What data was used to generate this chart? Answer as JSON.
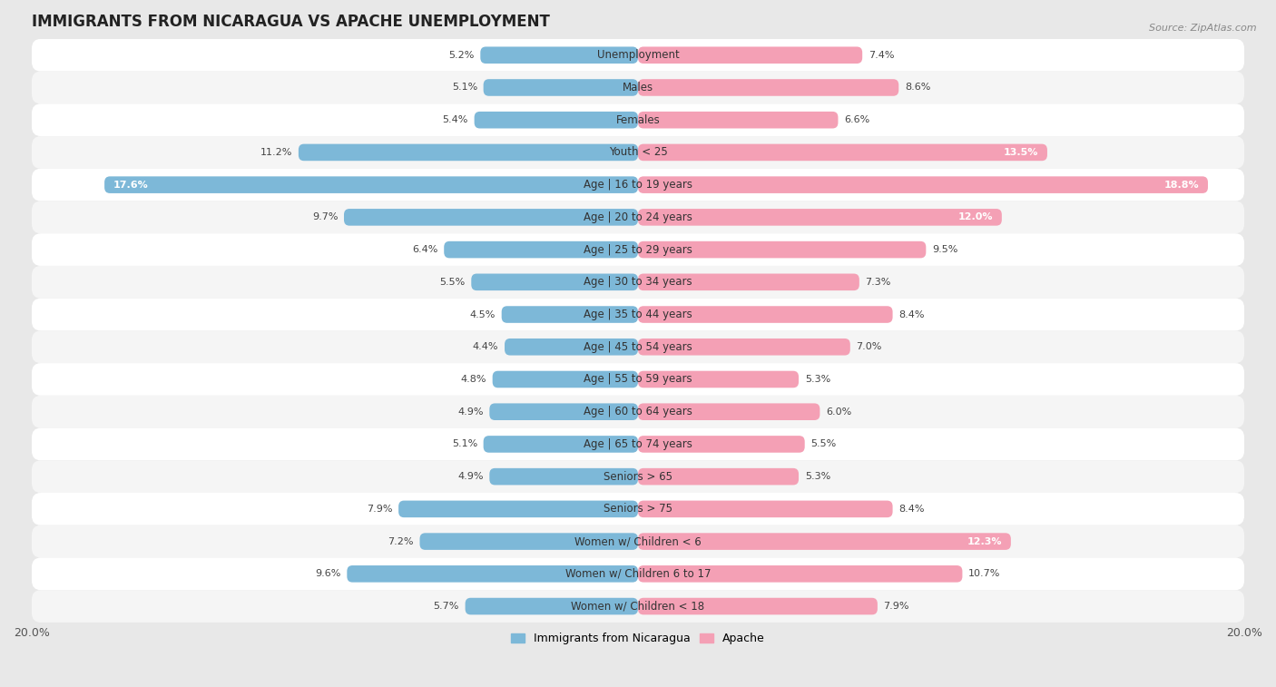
{
  "title": "IMMIGRANTS FROM NICARAGUA VS APACHE UNEMPLOYMENT",
  "source": "Source: ZipAtlas.com",
  "categories": [
    "Unemployment",
    "Males",
    "Females",
    "Youth < 25",
    "Age | 16 to 19 years",
    "Age | 20 to 24 years",
    "Age | 25 to 29 years",
    "Age | 30 to 34 years",
    "Age | 35 to 44 years",
    "Age | 45 to 54 years",
    "Age | 55 to 59 years",
    "Age | 60 to 64 years",
    "Age | 65 to 74 years",
    "Seniors > 65",
    "Seniors > 75",
    "Women w/ Children < 6",
    "Women w/ Children 6 to 17",
    "Women w/ Children < 18"
  ],
  "nicaragua_values": [
    5.2,
    5.1,
    5.4,
    11.2,
    17.6,
    9.7,
    6.4,
    5.5,
    4.5,
    4.4,
    4.8,
    4.9,
    5.1,
    4.9,
    7.9,
    7.2,
    9.6,
    5.7
  ],
  "apache_values": [
    7.4,
    8.6,
    6.6,
    13.5,
    18.8,
    12.0,
    9.5,
    7.3,
    8.4,
    7.0,
    5.3,
    6.0,
    5.5,
    5.3,
    8.4,
    12.3,
    10.7,
    7.9
  ],
  "nicaragua_color": "#7db8d8",
  "apache_color": "#f4a0b5",
  "max_val": 20.0,
  "background_color": "#e8e8e8",
  "row_color_odd": "#f5f5f5",
  "row_color_even": "#ffffff",
  "title_fontsize": 12,
  "source_fontsize": 8,
  "label_fontsize": 8.5,
  "value_fontsize": 8,
  "legend_label_nicaragua": "Immigrants from Nicaragua",
  "legend_label_apache": "Apache",
  "large_val_threshold": 11.5
}
